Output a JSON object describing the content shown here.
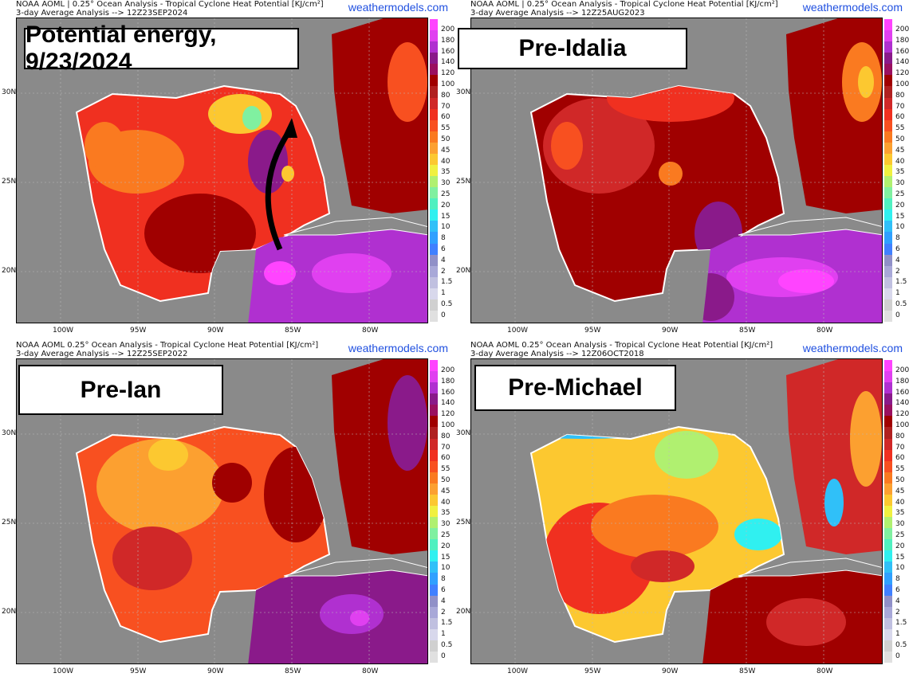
{
  "site": "weathermodels.com",
  "panels": [
    {
      "header1": "NOAA AOML | 0.25° Ocean Analysis - Tropical Cyclone Heat Potential [KJ/cm²]",
      "header2": "3-day Average Analysis --> 12Z23SEP2024",
      "label": "Potential energy, 9/23/2024"
    },
    {
      "header1": "NOAA AOML | 0.25° Ocean Analysis - Tropical Cyclone Heat Potential [KJ/cm²]",
      "header2": "3-day Average Analysis --> 12Z25AUG2023",
      "label": "Pre-Idalia"
    },
    {
      "header1": "NOAA AOML 0.25° Ocean Analysis - Tropical Cyclone Heat Potential [KJ/cm²]",
      "header2": "3-day Average Analysis --> 12Z25SEP2022",
      "label": "Pre-Ian"
    },
    {
      "header1": "NOAA AOML 0.25° Ocean Analysis - Tropical Cyclone Heat Potential [KJ/cm²]",
      "header2": "3-day Average Analysis --> 12Z06OCT2018",
      "label": "Pre-Michael"
    }
  ],
  "colorbar": {
    "labels": [
      "200",
      "180",
      "160",
      "140",
      "120",
      "100",
      "80",
      "70",
      "60",
      "55",
      "50",
      "45",
      "40",
      "35",
      "30",
      "25",
      "20",
      "15",
      "10",
      "8",
      "6",
      "4",
      "2",
      "1.5",
      "1",
      "0.5",
      "0"
    ],
    "colors": [
      "#ff44ff",
      "#e040f0",
      "#b030d0",
      "#8a1a8a",
      "#9a1060",
      "#a00000",
      "#b02020",
      "#d02828",
      "#f03020",
      "#f85020",
      "#fa7a20",
      "#fca030",
      "#fcc830",
      "#f0f040",
      "#b0f070",
      "#80f0a0",
      "#50f0c0",
      "#30f0f0",
      "#30c0f8",
      "#30a0ff",
      "#4080ff",
      "#9090c8",
      "#a8a8d8",
      "#c0c0e0",
      "#d8d8ec",
      "#d0d0d0",
      "#e0e0e0"
    ]
  },
  "x_axis": [
    "100W",
    "95W",
    "90W",
    "85W",
    "80W"
  ],
  "y_axis": [
    "30N",
    "25N",
    "20N"
  ]
}
